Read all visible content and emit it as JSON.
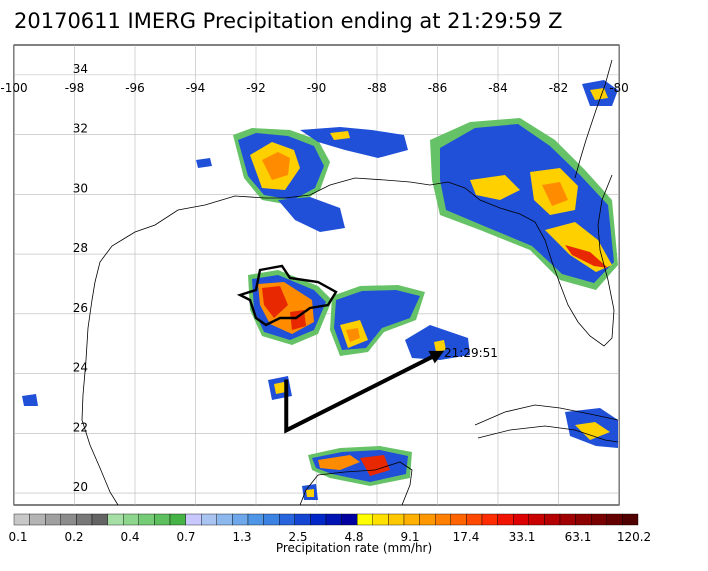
{
  "title": "20170611 IMERG Precipitation ending at 21:29:59 Z",
  "map": {
    "lon_range": [
      -100,
      -80
    ],
    "lat_range": [
      19.6,
      35.0
    ],
    "lon_ticks": [
      "-100",
      "-98",
      "-96",
      "-94",
      "-92",
      "-90",
      "-88",
      "-86",
      "-84",
      "-82",
      "-80"
    ],
    "lat_ticks": [
      "34",
      "32",
      "30",
      "28",
      "26",
      "24",
      "22",
      "20"
    ],
    "lon_values": [
      -100,
      -98,
      -96,
      -94,
      -92,
      -90,
      -88,
      -86,
      -84,
      -82,
      -80
    ],
    "lat_values": [
      34,
      32,
      30,
      28,
      26,
      24,
      22,
      20
    ],
    "gridlines": true,
    "track": {
      "points": [
        [
          -91.0,
          23.8
        ],
        [
          -91.0,
          22.1
        ],
        [
          -85.9,
          24.7
        ]
      ],
      "end_label": "21:29:51"
    }
  },
  "colorbar": {
    "label": "Precipitation rate (mm/hr)",
    "tick_labels": [
      "0.1",
      "0.2",
      "0.4",
      "0.7",
      "1.3",
      "2.5",
      "4.8",
      "9.1",
      "17.4",
      "33.1",
      "63.1",
      "120.2"
    ],
    "colors": [
      "#c8c8c8",
      "#b4b4b4",
      "#a0a0a0",
      "#8c8c8c",
      "#787878",
      "#646464",
      "#a6dfa6",
      "#8ed68e",
      "#76cc76",
      "#5ebf5e",
      "#46b346",
      "#c8c8ff",
      "#aac4f2",
      "#8cb8ee",
      "#6ea8ea",
      "#5096e6",
      "#3c82e2",
      "#2864dc",
      "#1446d2",
      "#0028c8",
      "#0014b4",
      "#0000a0",
      "#ffff00",
      "#ffe000",
      "#ffc800",
      "#ffb000",
      "#ff9800",
      "#ff8000",
      "#ff6400",
      "#ff4800",
      "#ff2c00",
      "#f01400",
      "#dc0000",
      "#c80000",
      "#b40000",
      "#a00000",
      "#8c0000",
      "#780000",
      "#640000",
      "#500000"
    ]
  }
}
